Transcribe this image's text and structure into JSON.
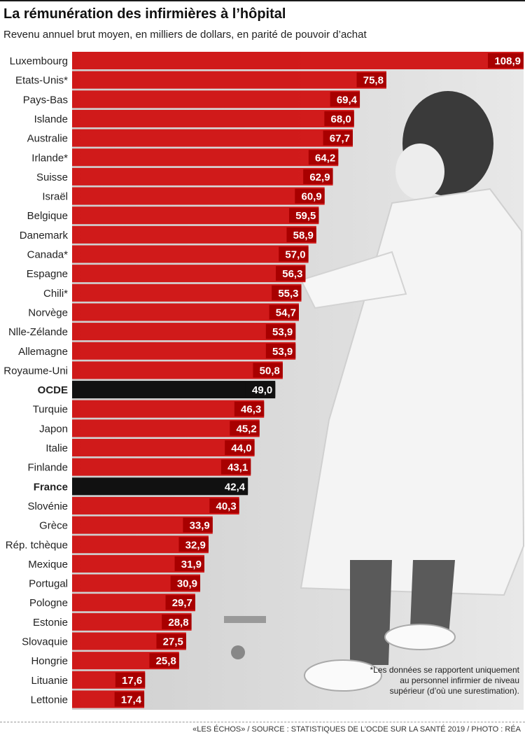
{
  "title": "La rémunération des infirmières à l’hôpital",
  "subtitle": "Revenu annuel brut moyen, en milliers de dollars, en parité de pouvoir d’achat",
  "footnote": "*Les données se rapportent uniquement au personnel infirmier de niveau supérieur (d’où une surestimation).",
  "footer": "«LES ÉCHOS» / SOURCE : STATISTIQUES DE L’OCDE SUR LA SANTÉ 2019 / PHOTO : RÉA",
  "colors": {
    "bar": "#cf0a0a",
    "highlight": "#111111",
    "label_bg": "#a80000",
    "photo": "#b9b9b9"
  },
  "chart_data": {
    "type": "bar",
    "orientation": "horizontal",
    "categories": [
      "Luxembourg",
      "Etats-Unis*",
      "Pays-Bas",
      "Islande",
      "Australie",
      "Irlande*",
      "Suisse",
      "Israël",
      "Belgique",
      "Danemark",
      "Canada*",
      "Espagne",
      "Chili*",
      "Norvège",
      "Nlle-Zélande",
      "Allemagne",
      "Royaume-Uni",
      "OCDE",
      "Turquie",
      "Japon",
      "Italie",
      "Finlande",
      "France",
      "Slovénie",
      "Grèce",
      "Rép. tchèque",
      "Mexique",
      "Portugal",
      "Pologne",
      "Estonie",
      "Slovaquie",
      "Hongrie",
      "Lituanie",
      "Lettonie"
    ],
    "values": [
      108.9,
      75.8,
      69.4,
      68.0,
      67.7,
      64.2,
      62.9,
      60.9,
      59.5,
      58.9,
      57.0,
      56.3,
      55.3,
      54.7,
      53.9,
      53.9,
      50.8,
      49.0,
      46.3,
      45.2,
      44.0,
      43.1,
      42.4,
      40.3,
      33.9,
      32.9,
      31.9,
      30.9,
      29.7,
      28.8,
      27.5,
      25.8,
      17.6,
      17.4
    ],
    "value_labels": [
      "108,9",
      "75,8",
      "69,4",
      "68,0",
      "67,7",
      "64,2",
      "62,9",
      "60,9",
      "59,5",
      "58,9",
      "57,0",
      "56,3",
      "55,3",
      "54,7",
      "53,9",
      "53,9",
      "50,8",
      "49,0",
      "46,3",
      "45,2",
      "44,0",
      "43,1",
      "42,4",
      "40,3",
      "33,9",
      "32,9",
      "31,9",
      "30,9",
      "29,7",
      "28,8",
      "27,5",
      "25,8",
      "17,6",
      "17,4"
    ],
    "highlighted": [
      "OCDE",
      "France"
    ],
    "xlim": [
      0,
      108.9
    ]
  }
}
